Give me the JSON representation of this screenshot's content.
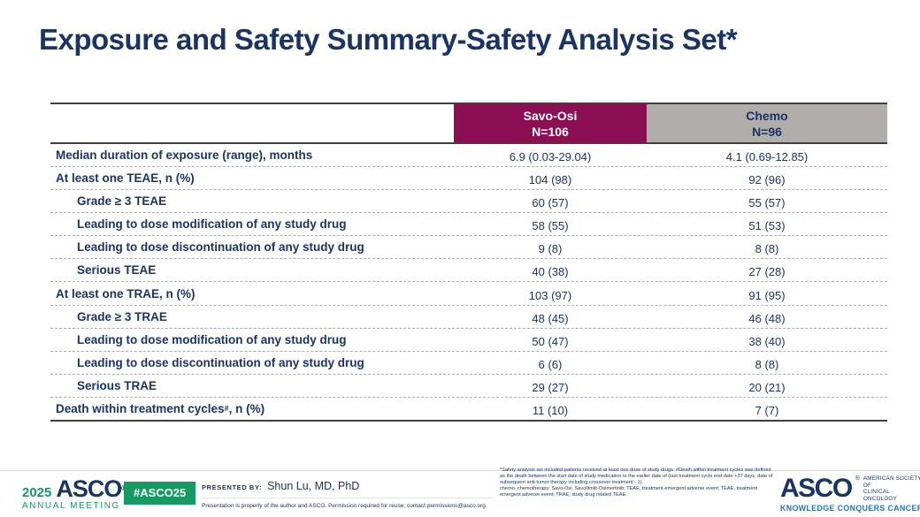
{
  "title": "Exposure and Safety Summary-Safety Analysis Set*",
  "colors": {
    "navy": "#1A3466",
    "savo_osi_header_bg": "#8C0E53",
    "chemo_header_bg": "#B1ADAA",
    "asco_green": "#169A62",
    "tagline_blue": "#1B75BC"
  },
  "table": {
    "columns": [
      {
        "name": "Savo-Osi",
        "n": "N=106"
      },
      {
        "name": "Chemo",
        "n": "N=96"
      }
    ],
    "rows": [
      {
        "label": "Median duration of exposure (range), months",
        "sup": "",
        "after": "",
        "indent": false,
        "savo_osi": "6.9 (0.03-29.04)",
        "chemo": "4.1 (0.69-12.85)"
      },
      {
        "label": "At least one TEAE, n (%)",
        "sup": "",
        "after": "",
        "indent": false,
        "savo_osi": "104 (98)",
        "chemo": "92 (96)"
      },
      {
        "label": "Grade ≥ 3 TEAE",
        "sup": "",
        "after": "",
        "indent": true,
        "savo_osi": "60 (57)",
        "chemo": "55 (57)"
      },
      {
        "label": "Leading to dose modification of any study drug",
        "sup": "",
        "after": "",
        "indent": true,
        "savo_osi": "58 (55)",
        "chemo": "51 (53)"
      },
      {
        "label": "Leading to dose discontinuation of any study drug",
        "sup": "",
        "after": "",
        "indent": true,
        "savo_osi": "9 (8)",
        "chemo": "8 (8)"
      },
      {
        "label": "Serious TEAE",
        "sup": "",
        "after": "",
        "indent": true,
        "savo_osi": "40 (38)",
        "chemo": "27 (28)"
      },
      {
        "label": "At least one TRAE, n (%)",
        "sup": "",
        "after": "",
        "indent": false,
        "savo_osi": "103 (97)",
        "chemo": "91 (95)"
      },
      {
        "label": "Grade ≥ 3 TRAE",
        "sup": "",
        "after": "",
        "indent": true,
        "savo_osi": "48 (45)",
        "chemo": "46 (48)"
      },
      {
        "label": "Leading to dose modification of any study drug",
        "sup": "",
        "after": "",
        "indent": true,
        "savo_osi": "50 (47)",
        "chemo": "38 (40)"
      },
      {
        "label": "Leading to dose discontinuation of any study drug",
        "sup": "",
        "after": "",
        "indent": true,
        "savo_osi": "6 (6)",
        "chemo": "8 (8)"
      },
      {
        "label": "Serious TRAE",
        "sup": "",
        "after": "",
        "indent": true,
        "savo_osi": "29 (27)",
        "chemo": "20 (21)"
      },
      {
        "label": "Death within treatment cycles",
        "sup": "#",
        "after": ", n (%)",
        "indent": false,
        "savo_osi": "11 (10)",
        "chemo": "7 (7)"
      }
    ]
  },
  "footer": {
    "annual_meeting": {
      "year": "2025",
      "org": "ASCO",
      "reg": "®",
      "meeting": "ANNUAL MEETING"
    },
    "hashtag_badge": "#ASCO25",
    "presented_by_label": "PRESENTED BY:",
    "presenter": "Shun Lu, MD, PhD",
    "permission": "Presentation is property of the author and ASCO. Permission required for reuse; contact permissions@asco.org.",
    "footnote": "*Safety analysis set included patients received at least one dose of study drugs. #Death within treatment cycles was defined as the death between the start date of study medication to the earlier date of (last treatment cycle end date +37 days, date of subsequent anti-tumor therapy including crossover treatment - 1).",
    "abbreviations": "chemo, chemotherapy; Savo-Osi, Savolitinib-Osimertinib; TEAE, treatment-emergent adverse event; TEAE, treatment emergent adverse event; TRAE, study drug related TEAE.",
    "asco_logo": {
      "org": "ASCO",
      "reg": "®",
      "society_line1": "AMERICAN SOCIETY OF",
      "society_line2": "CLINICAL ONCOLOGY",
      "tagline": "KNOWLEDGE CONQUERS CANCER"
    }
  }
}
